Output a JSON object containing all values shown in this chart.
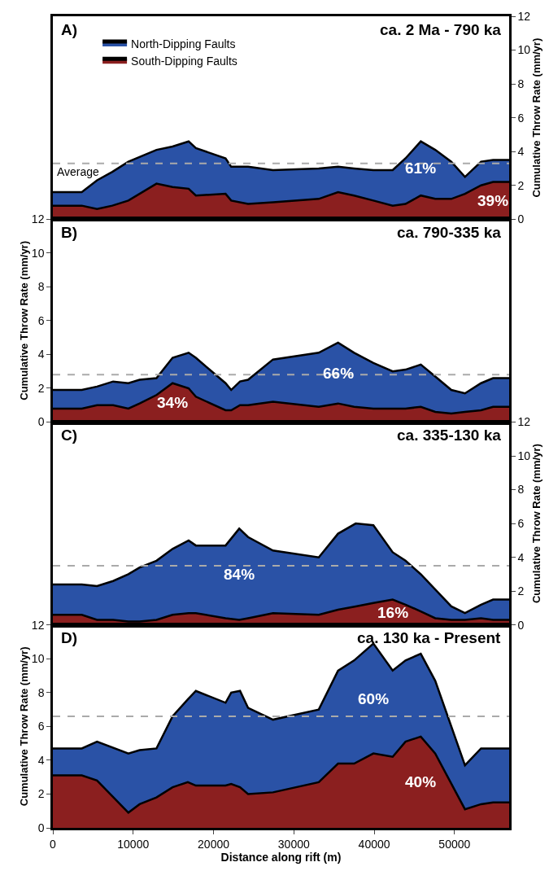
{
  "chart_data": [
    {
      "type": "area",
      "stacked": true,
      "title": "ca. 2 Ma - 790 ka",
      "y2label": "Cumulative Throw Rate (mm/yr)",
      "y2lim": [
        0,
        12
      ],
      "y2ticks": [
        0,
        2,
        4,
        6,
        8,
        10,
        12
      ],
      "xlim": [
        0,
        56800
      ],
      "tick_labels": "y",
      "grid": false,
      "legend": "top left",
      "x": [
        0,
        3600,
        5500,
        7400,
        9400,
        12900,
        14900,
        16900,
        17800,
        21500,
        22200,
        24300,
        27400,
        33100,
        35500,
        37500,
        39900,
        42300,
        43900,
        45800,
        47600,
        49600,
        51300,
        53300,
        54800,
        56800
      ],
      "series": [
        {
          "name": "South-Dipping Faults",
          "color": "#8b1f1f",
          "axis": "y2",
          "values": [
            0.8,
            0.8,
            0.6,
            0.8,
            1.1,
            2.1,
            1.9,
            1.8,
            1.4,
            1.5,
            1.1,
            0.9,
            1.0,
            1.2,
            1.6,
            1.4,
            1.1,
            0.8,
            0.9,
            1.4,
            1.2,
            1.2,
            1.5,
            2.0,
            2.2,
            2.2
          ]
        },
        {
          "name": "North-Dipping Faults",
          "color": "#2a52a6",
          "axis": "y2",
          "values": [
            0.8,
            0.8,
            1.7,
            2.0,
            2.3,
            2.0,
            2.4,
            2.8,
            2.8,
            2.1,
            2.0,
            2.2,
            1.9,
            1.8,
            1.5,
            1.6,
            1.8,
            2.1,
            2.7,
            3.2,
            2.9,
            2.2,
            1.0,
            1.4,
            1.3,
            1.3
          ]
        }
      ],
      "ref_lines": [
        {
          "axis": "y2",
          "value": 3.3,
          "label": "Average",
          "color": "#aaaaaa",
          "line_style": "dashed"
        }
      ],
      "annotations": [
        "A)",
        "39%",
        "61%"
      ]
    },
    {
      "type": "area",
      "stacked": true,
      "title": "ca. 790-335 ka",
      "ylabel": "Cumulative Throw Rate (mm/yr)",
      "ylim": [
        0,
        12
      ],
      "yticks": [
        0,
        2,
        4,
        6,
        8,
        10,
        12
      ],
      "xlim": [
        0,
        56800
      ],
      "tick_labels": "y",
      "grid": false,
      "x": [
        0,
        3600,
        5500,
        7500,
        9400,
        10800,
        12900,
        14900,
        16900,
        17800,
        21500,
        22200,
        23300,
        24300,
        27400,
        33100,
        35500,
        37500,
        39900,
        42300,
        43900,
        45800,
        47600,
        49600,
        51300,
        53300,
        54800,
        56800
      ],
      "series": [
        {
          "color": "#8b1f1f",
          "values": [
            0.8,
            0.8,
            1.0,
            1.0,
            0.8,
            1.1,
            1.6,
            2.3,
            2.0,
            1.5,
            0.7,
            0.7,
            1.0,
            1.0,
            1.2,
            0.9,
            1.1,
            0.9,
            0.8,
            0.8,
            0.8,
            0.9,
            0.6,
            0.5,
            0.6,
            0.7,
            0.9,
            0.9
          ]
        },
        {
          "color": "#2a52a6",
          "values": [
            1.1,
            1.1,
            1.1,
            1.4,
            1.5,
            1.4,
            1.0,
            1.5,
            2.1,
            2.3,
            1.6,
            1.2,
            1.4,
            1.5,
            2.5,
            3.2,
            3.6,
            3.2,
            2.7,
            2.2,
            2.3,
            2.5,
            2.1,
            1.4,
            1.1,
            1.6,
            1.7,
            1.7
          ]
        }
      ],
      "ref_lines": [
        {
          "axis": "y",
          "value": 2.8,
          "color": "#aaaaaa",
          "line_style": "dashed"
        }
      ],
      "annotations": [
        "B)",
        "34%",
        "66%"
      ]
    },
    {
      "type": "area",
      "stacked": true,
      "title": "ca. 335-130 ka",
      "y2label": "Cumulative Throw Rate (mm/yr)",
      "y2lim": [
        0,
        12
      ],
      "y2ticks": [
        0,
        2,
        4,
        6,
        8,
        10,
        12
      ],
      "xlim": [
        0,
        56800
      ],
      "tick_labels": "y",
      "grid": false,
      "x": [
        0,
        3600,
        5500,
        7500,
        9400,
        10800,
        12900,
        14900,
        16900,
        17800,
        21500,
        23200,
        24300,
        27400,
        33100,
        35500,
        37700,
        39900,
        42300,
        43900,
        45800,
        47600,
        49600,
        51300,
        53300,
        54800,
        56800
      ],
      "series": [
        {
          "color": "#8b1f1f",
          "axis": "y2",
          "values": [
            0.6,
            0.6,
            0.3,
            0.3,
            0.2,
            0.2,
            0.3,
            0.6,
            0.7,
            0.7,
            0.4,
            0.3,
            0.4,
            0.7,
            0.6,
            0.9,
            1.1,
            1.3,
            1.5,
            1.2,
            0.8,
            0.4,
            0.3,
            0.3,
            0.4,
            0.3,
            0.3
          ]
        },
        {
          "color": "#2a52a6",
          "axis": "y2",
          "values": [
            1.8,
            1.8,
            2.0,
            2.3,
            2.8,
            3.2,
            3.5,
            3.9,
            4.3,
            4.0,
            4.3,
            5.4,
            4.8,
            3.7,
            3.4,
            4.5,
            4.9,
            4.6,
            2.8,
            2.6,
            2.2,
            1.7,
            0.8,
            0.4,
            0.8,
            1.2,
            1.2
          ]
        }
      ],
      "ref_lines": [
        {
          "axis": "y2",
          "value": 3.5,
          "color": "#aaaaaa",
          "line_style": "dashed"
        }
      ],
      "annotations": [
        "C)",
        "16%",
        "84%"
      ]
    },
    {
      "type": "area",
      "stacked": true,
      "title": "ca. 130 ka - Present",
      "xlabel": "Distance along rift (m)",
      "ylabel": "Cumulative Throw Rate (mm/yr)",
      "ylim": [
        0,
        12
      ],
      "yticks": [
        0,
        2,
        4,
        6,
        8,
        10,
        12
      ],
      "xlim": [
        0,
        56800
      ],
      "xticks": [
        0,
        10000,
        20000,
        30000,
        40000,
        50000
      ],
      "grid": false,
      "x": [
        0,
        3600,
        5500,
        9400,
        10800,
        12900,
        14900,
        16800,
        17800,
        21500,
        22200,
        23300,
        24300,
        27400,
        33100,
        35500,
        37500,
        39900,
        42300,
        43900,
        45800,
        47600,
        51300,
        53300,
        54800,
        56800
      ],
      "series": [
        {
          "color": "#8b1f1f",
          "values": [
            3.1,
            3.1,
            2.8,
            0.9,
            1.4,
            1.8,
            2.4,
            2.7,
            2.5,
            2.5,
            2.6,
            2.4,
            2.0,
            2.1,
            2.7,
            3.8,
            3.8,
            4.4,
            4.2,
            5.1,
            5.4,
            4.4,
            1.1,
            1.4,
            1.5,
            1.5
          ]
        },
        {
          "color": "#2a52a6",
          "values": [
            1.6,
            1.6,
            2.3,
            3.5,
            3.2,
            2.9,
            4.2,
            4.9,
            5.6,
            4.9,
            5.4,
            5.7,
            5.1,
            4.3,
            4.3,
            5.5,
            6.1,
            6.5,
            5.1,
            4.8,
            4.9,
            4.3,
            2.6,
            3.3,
            3.2,
            3.2
          ]
        }
      ],
      "ref_lines": [
        {
          "axis": "y",
          "value": 6.6,
          "color": "#aaaaaa",
          "line_style": "dashed"
        }
      ],
      "annotations": [
        "D)",
        "40%",
        "60%"
      ]
    }
  ]
}
